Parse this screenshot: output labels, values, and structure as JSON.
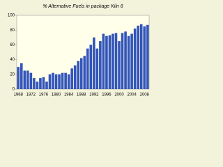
{
  "chart_data": {
    "type": "bar",
    "title": "% Alternative Fuels in package Kiln 6",
    "categories": [
      "1968",
      null,
      null,
      null,
      "1972",
      null,
      null,
      null,
      "1976",
      null,
      null,
      null,
      "1980",
      null,
      null,
      null,
      "1984",
      null,
      null,
      null,
      "1988",
      null,
      null,
      null,
      "1992",
      null,
      null,
      null,
      "1996",
      null,
      null,
      null,
      "2000",
      null,
      null,
      null,
      "2004",
      null,
      null,
      null,
      "2008",
      null
    ],
    "values": [
      30,
      35,
      25,
      25,
      22,
      15,
      10,
      15,
      16,
      10,
      20,
      22,
      20,
      20,
      22,
      22,
      20,
      28,
      32,
      38,
      42,
      45,
      55,
      60,
      70,
      55,
      65,
      75,
      72,
      73,
      75,
      76,
      65,
      76,
      78,
      72,
      75,
      82,
      86,
      88,
      85,
      87
    ],
    "color": "#3355bb",
    "ylim": [
      0,
      100
    ],
    "yticks": [
      0,
      20,
      40,
      60,
      80,
      100
    ],
    "grid": false
  }
}
